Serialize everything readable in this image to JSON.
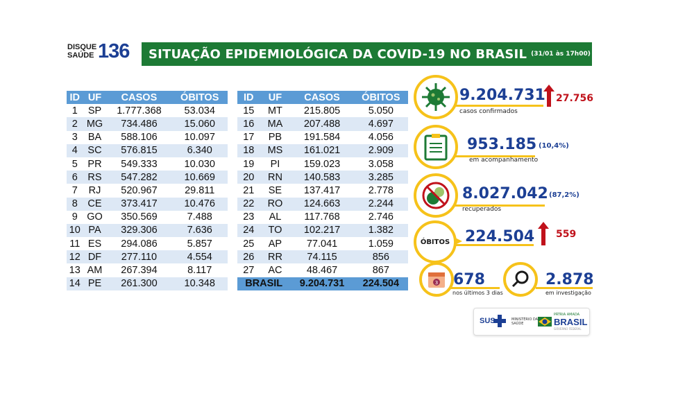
{
  "logo": {
    "line1": "DISQUE",
    "line2": "SAÚDE",
    "number": "136"
  },
  "header": {
    "title": "SITUAÇÃO EPIDEMIOLÓGICA DA COVID-19 NO BRASIL",
    "date": "(31/01 às 17h00)"
  },
  "table_left": {
    "headers": [
      "ID",
      "UF",
      "CASOS",
      "ÓBITOS"
    ],
    "rows": [
      [
        "1",
        "SP",
        "1.777.368",
        "53.034"
      ],
      [
        "2",
        "MG",
        "734.486",
        "15.060"
      ],
      [
        "3",
        "BA",
        "588.106",
        "10.097"
      ],
      [
        "4",
        "SC",
        "576.815",
        "6.340"
      ],
      [
        "5",
        "PR",
        "549.333",
        "10.030"
      ],
      [
        "6",
        "RS",
        "547.282",
        "10.669"
      ],
      [
        "7",
        "RJ",
        "520.967",
        "29.811"
      ],
      [
        "8",
        "CE",
        "373.417",
        "10.476"
      ],
      [
        "9",
        "GO",
        "350.569",
        "7.488"
      ],
      [
        "10",
        "PA",
        "329.306",
        "7.636"
      ],
      [
        "11",
        "ES",
        "294.086",
        "5.857"
      ],
      [
        "12",
        "DF",
        "277.110",
        "4.554"
      ],
      [
        "13",
        "AM",
        "267.394",
        "8.117"
      ],
      [
        "14",
        "PE",
        "261.300",
        "10.348"
      ]
    ]
  },
  "table_right": {
    "headers": [
      "ID",
      "UF",
      "CASOS",
      "ÓBITOS"
    ],
    "rows": [
      [
        "15",
        "MT",
        "215.805",
        "5.050"
      ],
      [
        "16",
        "MA",
        "207.488",
        "4.697"
      ],
      [
        "17",
        "PB",
        "191.584",
        "4.056"
      ],
      [
        "18",
        "MS",
        "161.021",
        "2.909"
      ],
      [
        "19",
        "PI",
        "159.023",
        "3.058"
      ],
      [
        "20",
        "RN",
        "140.583",
        "3.285"
      ],
      [
        "21",
        "SE",
        "137.417",
        "2.778"
      ],
      [
        "22",
        "RO",
        "124.663",
        "2.244"
      ],
      [
        "23",
        "AL",
        "117.768",
        "2.746"
      ],
      [
        "24",
        "TO",
        "102.217",
        "1.382"
      ],
      [
        "25",
        "AP",
        "77.041",
        "1.059"
      ],
      [
        "26",
        "RR",
        "74.115",
        "856"
      ],
      [
        "27",
        "AC",
        "48.467",
        "867"
      ]
    ],
    "total": {
      "label": "BRASIL",
      "casos": "9.204.731",
      "obitos": "224.504"
    }
  },
  "stats": {
    "confirmed": {
      "value": "9.204.731",
      "increase": "27.756",
      "label": "casos confirmados"
    },
    "monitoring": {
      "value": "953.185",
      "pct": "(10,4%)",
      "label": "em acompanhamento"
    },
    "recovered": {
      "value": "8.027.042",
      "pct": "(87,2%)",
      "label": "recuperados"
    },
    "deaths": {
      "badge": "ÓBITOS",
      "value": "224.504",
      "increase": "559"
    },
    "recent_deaths": {
      "value": "678",
      "label": "nos últimos 3 dias",
      "calendar_day": "3"
    },
    "investigation": {
      "value": "2.878",
      "label": "em investigação"
    }
  },
  "footer": {
    "sus": "SUS",
    "ministry_line1": "MINISTÉRIO DA",
    "ministry_line2": "SAÚDE",
    "slogan": "PÁTRIA AMADA",
    "country": "BRASIL",
    "gov": "GOVERNO FEDERAL"
  },
  "colors": {
    "green": "#1d7a35",
    "blue": "#1c3f94",
    "header_blue": "#5b9bd5",
    "stripe": "#dde8f5",
    "yellow": "#f6c21a",
    "red": "#c0121b"
  }
}
